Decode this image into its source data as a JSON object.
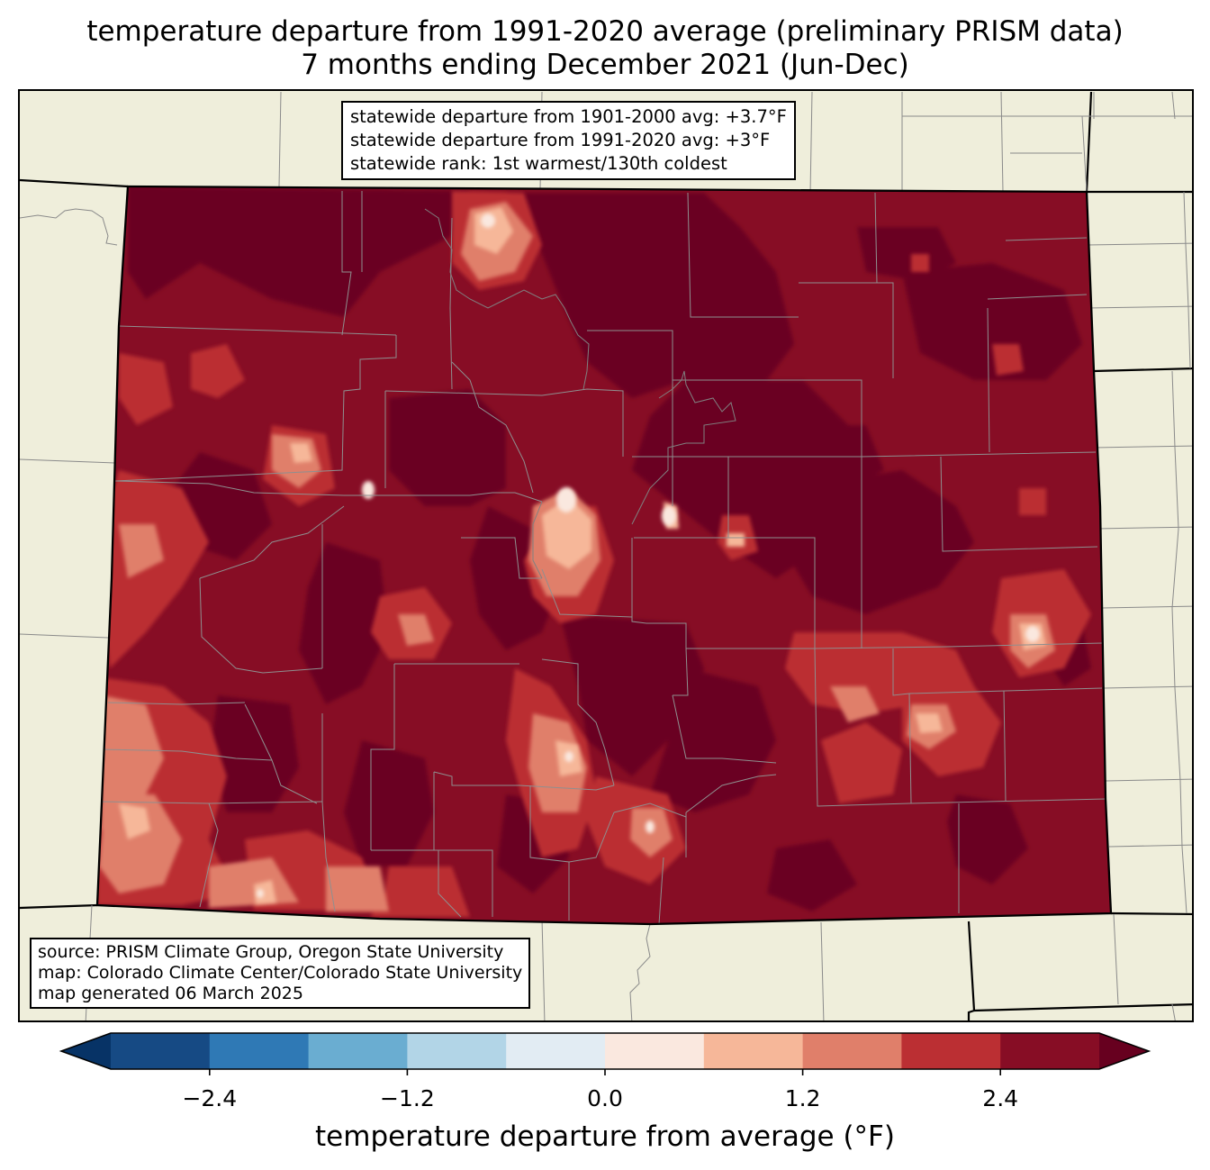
{
  "title": {
    "line1": "temperature departure from 1991-2020 average (preliminary PRISM data)",
    "line2": "7 months ending December 2021 (Jun-Dec)"
  },
  "stats_box": {
    "line1": "statewide departure from 1901-2000 avg: +3.7°F",
    "line2": "statewide departure from 1991-2020 avg: +3°F",
    "line3": "statewide rank: 1st warmest/130th coldest"
  },
  "source_box": {
    "line1": "source: PRISM Climate Group, Oregon State University",
    "line2": "map: Colorado Climate Center/Colorado State University",
    "line3": "map generated 06 March 2025"
  },
  "colorbar": {
    "label": "temperature departure from average (°F)",
    "ticks": [
      "−2.4",
      "−1.2",
      "0.0",
      "1.2",
      "2.4"
    ],
    "tick_values": [
      -2.4,
      -1.2,
      0.0,
      1.2,
      2.4
    ],
    "range": [
      -3.0,
      3.0
    ],
    "levels": [
      -3.0,
      -2.4,
      -1.8,
      -1.2,
      -0.6,
      0.0,
      0.6,
      1.2,
      1.8,
      2.4,
      3.0
    ],
    "colors": [
      "#164a84",
      "#2f79b5",
      "#6aadd1",
      "#b2d5e7",
      "#e2ecf3",
      "#fae8df",
      "#f6b799",
      "#e07f6a",
      "#bb2f33",
      "#870d25"
    ],
    "under_color": "#073366",
    "over_color": "#67001f"
  },
  "map_colors": {
    "background": "#efeedb",
    "state_fill": "#870d25",
    "darkest": "#6b0420",
    "red": "#bb2f33",
    "salmon": "#e07f6a",
    "peach": "#f6b799",
    "pale": "#fae8df",
    "county_line": "#808080",
    "border_line": "#000000"
  }
}
